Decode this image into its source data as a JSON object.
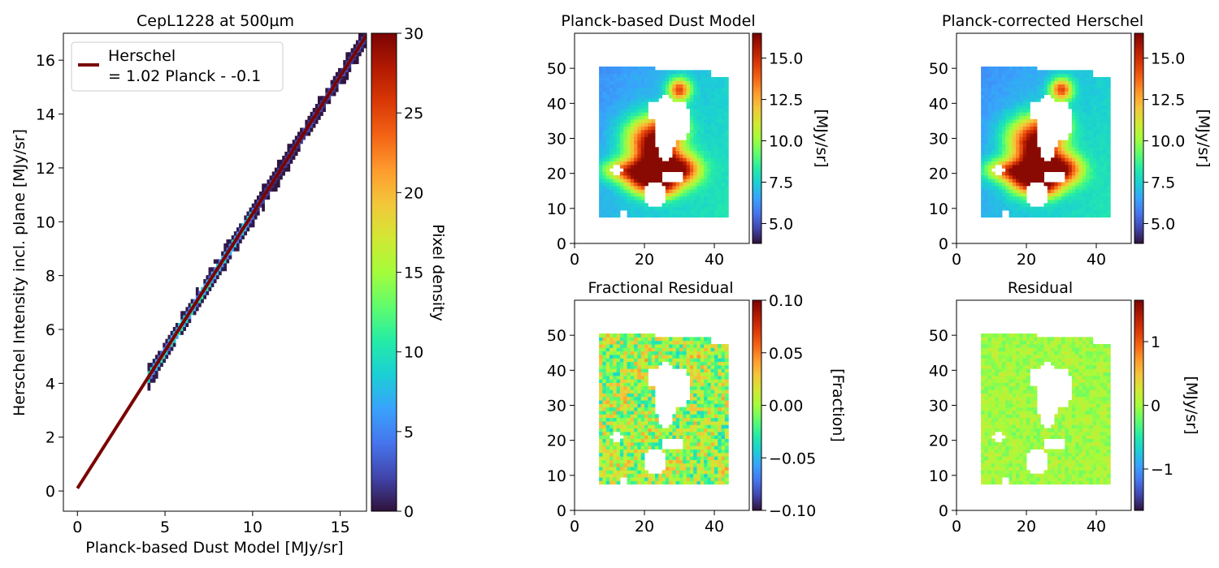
{
  "colors": {
    "fit_line": "#7a0403",
    "colormap": [
      "#30123b",
      "#4145ab",
      "#4675ed",
      "#39a2fc",
      "#1bcfd4",
      "#24eca6",
      "#61fc6c",
      "#a4fc3b",
      "#d1e834",
      "#f3c63a",
      "#fe9b2d",
      "#f36315",
      "#d93806",
      "#b11901",
      "#7a0403"
    ]
  },
  "chart_data": [
    {
      "type": "scatter",
      "render": "2d-histogram with linear fit",
      "title": "CepL1228 at 500µm",
      "xlabel": "Planck-based Dust Model [MJy/sr]",
      "ylabel": "Herschel Intensity incl. plane [MJy/sr]",
      "xlim": [
        -0.8,
        16.5
      ],
      "ylim": [
        -0.75,
        17.0
      ],
      "xticks": [
        0,
        5,
        10,
        15
      ],
      "yticks": [
        0,
        2,
        4,
        6,
        8,
        10,
        12,
        14,
        16
      ],
      "grid": false,
      "legend": {
        "position": "top-left",
        "entries": [
          "Herschel",
          "= 1.02 Planck - -0.1"
        ]
      },
      "fit": {
        "slope": 1.02,
        "intercept": 0.1,
        "x_range": [
          0,
          16.5
        ]
      },
      "density_range": [
        4.0,
        16.5
      ],
      "colorbar": {
        "label": "Pixel density",
        "range": [
          0,
          30
        ],
        "ticks": [
          0,
          5,
          10,
          15,
          20,
          25,
          30
        ]
      }
    },
    {
      "type": "heatmap",
      "title": "Planck-based Dust Model",
      "xlim": [
        0,
        50
      ],
      "ylim": [
        0,
        60
      ],
      "xticks": [
        0,
        20,
        40
      ],
      "yticks": [
        0,
        10,
        20,
        30,
        40,
        50
      ],
      "data_extent": {
        "x": [
          7,
          44
        ],
        "y": [
          7.5,
          50
        ]
      },
      "colorbar": {
        "label": "[MJy/sr]",
        "range": [
          3.8,
          16.5
        ],
        "ticks": [
          "5.0",
          "7.5",
          "10.0",
          "12.5",
          "15.0"
        ]
      },
      "field": "intensity"
    },
    {
      "type": "heatmap",
      "title": "Planck-corrected Herschel",
      "xlim": [
        0,
        50
      ],
      "ylim": [
        0,
        60
      ],
      "xticks": [
        0,
        20,
        40
      ],
      "yticks": [
        0,
        10,
        20,
        30,
        40,
        50
      ],
      "data_extent": {
        "x": [
          7,
          44
        ],
        "y": [
          7.5,
          50
        ]
      },
      "colorbar": {
        "label": "[MJy/sr]",
        "range": [
          3.8,
          16.5
        ],
        "ticks": [
          "5.0",
          "7.5",
          "10.0",
          "12.5",
          "15.0"
        ]
      },
      "field": "intensity"
    },
    {
      "type": "heatmap",
      "title": "Fractional Residual",
      "xlim": [
        0,
        50
      ],
      "ylim": [
        0,
        60
      ],
      "xticks": [
        0,
        20,
        40
      ],
      "yticks": [
        0,
        10,
        20,
        30,
        40,
        50
      ],
      "data_extent": {
        "x": [
          7,
          44
        ],
        "y": [
          7.5,
          50
        ]
      },
      "colorbar": {
        "label": "[Fraction]",
        "range": [
          -0.1,
          0.1
        ],
        "ticks": [
          "0.10",
          "0.05",
          "0.00",
          "−0.05",
          "−0.10"
        ]
      },
      "field": "fraction"
    },
    {
      "type": "heatmap",
      "title": "Residual",
      "xlim": [
        0,
        50
      ],
      "ylim": [
        0,
        60
      ],
      "xticks": [
        0,
        20,
        40
      ],
      "yticks": [
        0,
        10,
        20,
        30,
        40,
        50
      ],
      "data_extent": {
        "x": [
          7,
          44
        ],
        "y": [
          7.5,
          50
        ]
      },
      "colorbar": {
        "label": "[MJy/sr]",
        "range": [
          -1.65,
          1.65
        ],
        "ticks": [
          "1",
          "0",
          "−1"
        ]
      },
      "field": "residual"
    }
  ]
}
